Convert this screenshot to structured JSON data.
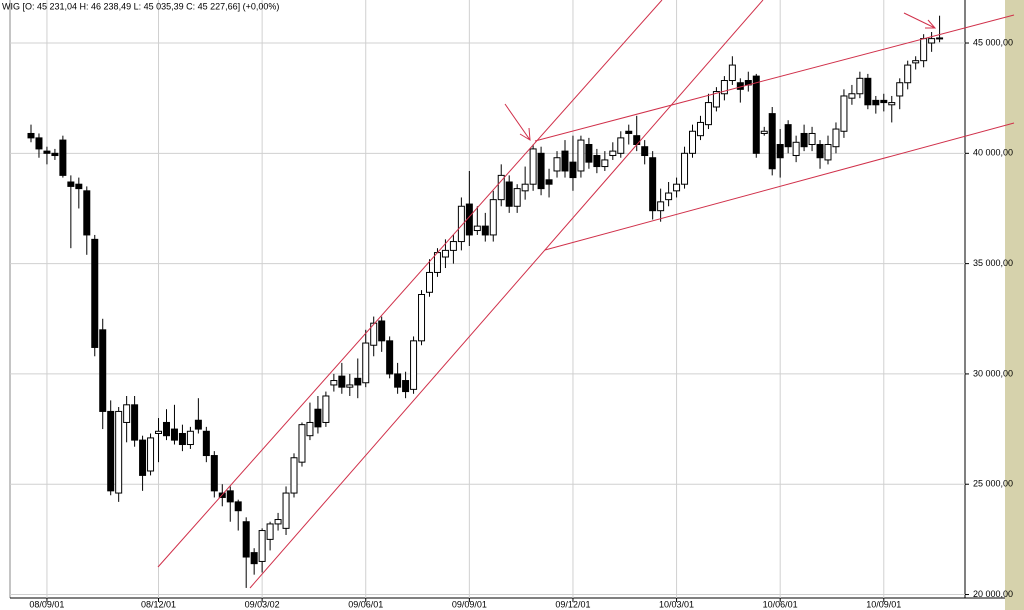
{
  "chart_data": {
    "type": "candlestick",
    "title": "WIG [O: 45 231,04 H: 46 238,49 L: 45 035,39 C: 45 227,66] (+0,00%)",
    "categories": [
      null,
      null,
      "08/09/01",
      null,
      null,
      null,
      null,
      null,
      null,
      null,
      null,
      null,
      null,
      null,
      null,
      null,
      "08/12/01",
      null,
      null,
      null,
      null,
      null,
      null,
      null,
      null,
      null,
      null,
      null,
      null,
      "09/03/02",
      null,
      null,
      null,
      null,
      null,
      null,
      null,
      null,
      null,
      null,
      null,
      null,
      "09/06/01",
      null,
      null,
      null,
      null,
      null,
      null,
      null,
      null,
      null,
      null,
      null,
      null,
      "09/09/01",
      null,
      null,
      null,
      null,
      null,
      null,
      null,
      null,
      null,
      null,
      null,
      null,
      "09/12/01",
      null,
      null,
      null,
      null,
      null,
      null,
      null,
      null,
      null,
      null,
      null,
      null,
      "10/03/01",
      null,
      null,
      null,
      null,
      null,
      null,
      null,
      null,
      null,
      null,
      null,
      null,
      "10/06/01",
      null,
      null,
      null,
      null,
      null,
      null,
      null,
      null,
      null,
      null,
      null,
      null,
      "10/09/01",
      null,
      null,
      null,
      null,
      null,
      null,
      null
    ],
    "ohlc": [
      [
        40900,
        41300,
        40500,
        40700
      ],
      [
        40700,
        40900,
        39800,
        40200
      ],
      [
        40100,
        40300,
        39500,
        40000
      ],
      [
        40000,
        40200,
        39700,
        39900
      ],
      [
        40600,
        40800,
        38900,
        39000
      ],
      [
        38700,
        39000,
        35700,
        38500
      ],
      [
        38600,
        38900,
        37500,
        38400
      ],
      [
        38300,
        38500,
        35400,
        36300
      ],
      [
        36100,
        36300,
        30800,
        31200
      ],
      [
        32000,
        32500,
        27500,
        28300
      ],
      [
        28300,
        28800,
        24500,
        24700
      ],
      [
        24600,
        28500,
        24200,
        28300
      ],
      [
        27800,
        29000,
        26900,
        28600
      ],
      [
        28600,
        29000,
        26700,
        27000
      ],
      [
        27000,
        27200,
        24700,
        25400
      ],
      [
        25600,
        27300,
        25400,
        27100
      ],
      [
        27300,
        28000,
        26000,
        27400
      ],
      [
        27800,
        28400,
        27000,
        27200
      ],
      [
        27500,
        28600,
        26800,
        27000
      ],
      [
        27300,
        27700,
        26500,
        26800
      ],
      [
        26800,
        27600,
        26600,
        27400
      ],
      [
        27900,
        28900,
        27300,
        27500
      ],
      [
        27400,
        27600,
        26000,
        26300
      ],
      [
        26300,
        26500,
        24400,
        24700
      ],
      [
        24600,
        25000,
        24000,
        24400
      ],
      [
        24700,
        24900,
        23300,
        24200
      ],
      [
        24200,
        24300,
        22900,
        23800
      ],
      [
        23300,
        23500,
        20300,
        21700
      ],
      [
        21900,
        22100,
        20900,
        21400
      ],
      [
        21500,
        23000,
        21000,
        22900
      ],
      [
        22500,
        23300,
        22000,
        23200
      ],
      [
        23200,
        23700,
        22900,
        23400
      ],
      [
        23000,
        24900,
        22700,
        24600
      ],
      [
        24600,
        26400,
        24400,
        26200
      ],
      [
        26000,
        27800,
        25800,
        27700
      ],
      [
        27200,
        28700,
        27000,
        27800
      ],
      [
        28400,
        29000,
        27300,
        27600
      ],
      [
        27800,
        29200,
        27600,
        29000
      ],
      [
        29500,
        30000,
        29200,
        29700
      ],
      [
        29900,
        30500,
        29100,
        29400
      ],
      [
        29400,
        30000,
        29000,
        29500
      ],
      [
        29800,
        30700,
        28900,
        29500
      ],
      [
        29600,
        32000,
        29400,
        31400
      ],
      [
        31300,
        32600,
        30800,
        32300
      ],
      [
        32400,
        32600,
        31000,
        31500
      ],
      [
        31500,
        31700,
        29800,
        30000
      ],
      [
        30000,
        30500,
        29100,
        29400
      ],
      [
        29700,
        30100,
        28900,
        29200
      ],
      [
        29300,
        31700,
        29100,
        31500
      ],
      [
        31500,
        33800,
        31300,
        33600
      ],
      [
        33700,
        35200,
        33500,
        34600
      ],
      [
        34600,
        35700,
        34400,
        35500
      ],
      [
        35300,
        36100,
        34800,
        35600
      ],
      [
        35600,
        36300,
        35000,
        36000
      ],
      [
        36000,
        38000,
        35600,
        37600
      ],
      [
        37700,
        39200,
        35800,
        36300
      ],
      [
        36500,
        37600,
        36300,
        36700
      ],
      [
        36700,
        37300,
        36000,
        36300
      ],
      [
        36300,
        38300,
        36000,
        37900
      ],
      [
        37900,
        39500,
        37600,
        39000
      ],
      [
        38700,
        39000,
        37300,
        37600
      ],
      [
        37600,
        38600,
        37300,
        38400
      ],
      [
        38300,
        39400,
        37900,
        38600
      ],
      [
        38600,
        40400,
        38300,
        40200
      ],
      [
        40000,
        40300,
        38100,
        38400
      ],
      [
        38800,
        39300,
        38000,
        38600
      ],
      [
        39200,
        40100,
        38900,
        39800
      ],
      [
        40100,
        40600,
        38900,
        39200
      ],
      [
        39600,
        40800,
        38300,
        38900
      ],
      [
        39200,
        40800,
        38900,
        40600
      ],
      [
        40400,
        40700,
        39300,
        39600
      ],
      [
        39900,
        40200,
        39100,
        39400
      ],
      [
        39400,
        40100,
        39200,
        39700
      ],
      [
        39900,
        40500,
        39700,
        40100
      ],
      [
        40000,
        41000,
        39800,
        40700
      ],
      [
        41000,
        41300,
        40400,
        40900
      ],
      [
        40800,
        41700,
        40100,
        40400
      ],
      [
        40300,
        40600,
        39500,
        39900
      ],
      [
        39800,
        40100,
        37000,
        37400
      ],
      [
        37400,
        38400,
        36900,
        37800
      ],
      [
        37900,
        38700,
        37600,
        38200
      ],
      [
        38300,
        38900,
        38000,
        38600
      ],
      [
        38600,
        40300,
        38400,
        40000
      ],
      [
        40000,
        41300,
        39800,
        41000
      ],
      [
        40800,
        41700,
        40600,
        41400
      ],
      [
        41300,
        42700,
        41100,
        42300
      ],
      [
        42100,
        43000,
        41900,
        42800
      ],
      [
        42700,
        43500,
        42400,
        43300
      ],
      [
        43300,
        44400,
        43100,
        44000
      ],
      [
        43200,
        43400,
        42300,
        42900
      ],
      [
        43300,
        43700,
        42800,
        43100
      ],
      [
        43500,
        43600,
        39800,
        40000
      ],
      [
        40900,
        41200,
        40800,
        41000
      ],
      [
        41800,
        42100,
        39000,
        39300
      ],
      [
        40400,
        41100,
        38900,
        39800
      ],
      [
        41300,
        41500,
        40000,
        40300
      ],
      [
        39900,
        40800,
        39600,
        40500
      ],
      [
        40900,
        41300,
        40100,
        40300
      ],
      [
        40400,
        41200,
        40100,
        40900
      ],
      [
        40400,
        40600,
        39300,
        39800
      ],
      [
        39700,
        40800,
        39500,
        40400
      ],
      [
        40300,
        41400,
        40000,
        41100
      ],
      [
        41000,
        42900,
        40700,
        42600
      ],
      [
        42500,
        43100,
        42200,
        42700
      ],
      [
        42700,
        43700,
        42500,
        43400
      ],
      [
        43400,
        43600,
        42000,
        42200
      ],
      [
        42400,
        42600,
        41800,
        42200
      ],
      [
        42400,
        42700,
        41900,
        42300
      ],
      [
        42200,
        42600,
        41400,
        42300
      ],
      [
        42600,
        43400,
        42000,
        43200
      ],
      [
        43200,
        44200,
        42900,
        44000
      ],
      [
        44100,
        44400,
        43800,
        44200
      ],
      [
        44200,
        45400,
        43900,
        45200
      ],
      [
        45000,
        45500,
        44600,
        45200
      ],
      [
        45231.04,
        46238.49,
        45035.39,
        45227.66
      ]
    ],
    "up_color": "#ffffff",
    "down_color": "#000000",
    "ylim": [
      19820,
      46950
    ],
    "yticks": [
      {
        "value": 20000,
        "label": "20 000,00"
      },
      {
        "value": 25000,
        "label": "25 000,00"
      },
      {
        "value": 30000,
        "label": "30 000,00"
      },
      {
        "value": 35000,
        "label": "35 000,00"
      },
      {
        "value": 40000,
        "label": "40 000,00"
      },
      {
        "value": 45000,
        "label": "45 000,00"
      }
    ],
    "grid": true
  }
}
